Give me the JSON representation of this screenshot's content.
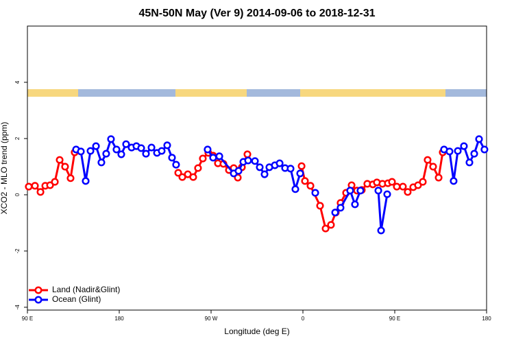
{
  "chart_data": {
    "type": "line",
    "title": "45N-50N May (Ver 9)   2014-09-06 to 2018-12-31",
    "xlabel": "Longitude (deg E)",
    "ylabel": "XCO2 - MLO trend (ppm)",
    "xlim": [
      90,
      540
    ],
    "ylim": [
      -4.1,
      6
    ],
    "xticks": [
      {
        "value": 90,
        "label": "90 E"
      },
      {
        "value": 180,
        "label": "180"
      },
      {
        "value": 270,
        "label": "90 W"
      },
      {
        "value": 360,
        "label": "0"
      },
      {
        "value": 450,
        "label": "90 E"
      },
      {
        "value": 540,
        "label": "180"
      }
    ],
    "yticks": [
      -4,
      -2,
      0,
      2,
      4
    ],
    "legend": "bottom left",
    "series": [
      {
        "name": "Land (Nadir&Glint)",
        "color": "#ff0000",
        "x": [
          91.3,
          97.4,
          102.8,
          107.5,
          112.2,
          116.9,
          121.6,
          126.9,
          132.3,
          136.3,
          null,
          237.8,
          241.8,
          247.2,
          252.5,
          257.2,
          261.9,
          267.3,
          272.0,
          276.7,
          282.1,
          287.5,
          292.2,
          296.2,
          300.2,
          305.6,
          null,
          358.7,
          362.0,
          367.4,
          376.8,
          382.2,
          387.5,
          392.2,
          396.9,
          402.3,
          407.7,
          413.0,
          417.7,
          423.1,
          428.5,
          432.5,
          437.9,
          443.3,
          447.3,
          452.0,
          458.0,
          462.7,
          468.1,
          472.8,
          477.5,
          482.2,
          487.6,
          493.0,
          497.0
        ],
        "values": [
          0.29,
          0.32,
          0.1,
          0.32,
          0.34,
          0.46,
          1.24,
          1.0,
          0.59,
          1.51,
          null,
          0.78,
          0.63,
          0.73,
          0.63,
          0.95,
          1.29,
          1.49,
          1.39,
          1.12,
          1.1,
          0.88,
          0.95,
          0.61,
          0.98,
          1.44,
          null,
          1.02,
          0.49,
          0.32,
          -0.39,
          -1.2,
          -1.07,
          -0.63,
          -0.29,
          0.07,
          0.34,
          0.15,
          0.17,
          0.39,
          0.37,
          0.44,
          0.39,
          0.41,
          0.46,
          0.29,
          0.29,
          0.1,
          0.27,
          0.34,
          0.46,
          1.24,
          1.0,
          0.61,
          1.51
        ]
      },
      {
        "name": "Ocean (Glint)",
        "color": "#0000ff",
        "x": [
          137.7,
          142.4,
          147.1,
          151.8,
          157.2,
          162.5,
          167.2,
          171.9,
          177.3,
          182.0,
          186.7,
          192.1,
          196.8,
          201.5,
          206.2,
          211.6,
          217.0,
          221.6,
          227.0,
          231.7,
          235.7,
          null,
          266.6,
          272.0,
          278.1,
          292.2,
          296.9,
          301.6,
          306.3,
          313.0,
          317.7,
          322.4,
          327.1,
          332.5,
          337.2,
          342.5,
          347.9,
          352.6,
          357.3,
          null,
          372.1,
          null,
          391.6,
          396.9,
          406.3,
          411.0,
          416.4,
          null,
          433.9,
          436.6,
          442.6,
          null,
          498.3,
          503.7,
          507.7,
          511.8,
          517.8,
          523.2,
          527.9,
          532.6,
          537.9
        ],
        "values": [
          1.61,
          1.54,
          0.49,
          1.56,
          1.73,
          1.15,
          1.46,
          1.98,
          1.61,
          1.44,
          1.8,
          1.68,
          1.73,
          1.66,
          1.46,
          1.68,
          1.49,
          1.56,
          1.76,
          1.32,
          1.07,
          null,
          1.61,
          1.32,
          1.37,
          0.76,
          0.85,
          1.17,
          1.22,
          1.2,
          0.98,
          0.73,
          0.98,
          1.05,
          1.12,
          0.95,
          0.93,
          0.2,
          0.76,
          null,
          0.07,
          null,
          -0.63,
          -0.46,
          0.15,
          -0.34,
          0.15,
          null,
          0.15,
          -1.27,
          0.02,
          null,
          1.61,
          1.54,
          0.49,
          1.56,
          1.73,
          1.15,
          1.46,
          1.98,
          1.61
        ]
      }
    ]
  }
}
